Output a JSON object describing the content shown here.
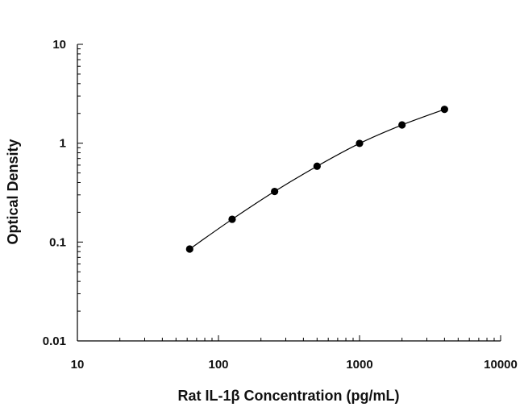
{
  "chart_data": {
    "type": "scatter",
    "title": "",
    "xlabel": "Rat IL-1β Concentration (pg/mL)",
    "ylabel": "Optical Density",
    "x_scale": "log",
    "y_scale": "log",
    "xlim": [
      10,
      10000
    ],
    "ylim": [
      0.01,
      10
    ],
    "x_ticks": [
      "10",
      "100",
      "1000",
      "10000"
    ],
    "y_ticks": [
      "0.01",
      "0.1",
      "1",
      "10"
    ],
    "grid": false,
    "legend": "none",
    "series": [
      {
        "x": [
          62.5,
          125,
          250,
          500,
          1000,
          2000,
          4000
        ],
        "y": [
          0.085,
          0.17,
          0.325,
          0.585,
          0.995,
          1.53,
          2.2
        ],
        "marker": "filled-circle",
        "fit_line": "smooth-curve"
      }
    ],
    "colors": {
      "marker": "#000000",
      "line": "#000000",
      "axis": "#000000"
    }
  }
}
